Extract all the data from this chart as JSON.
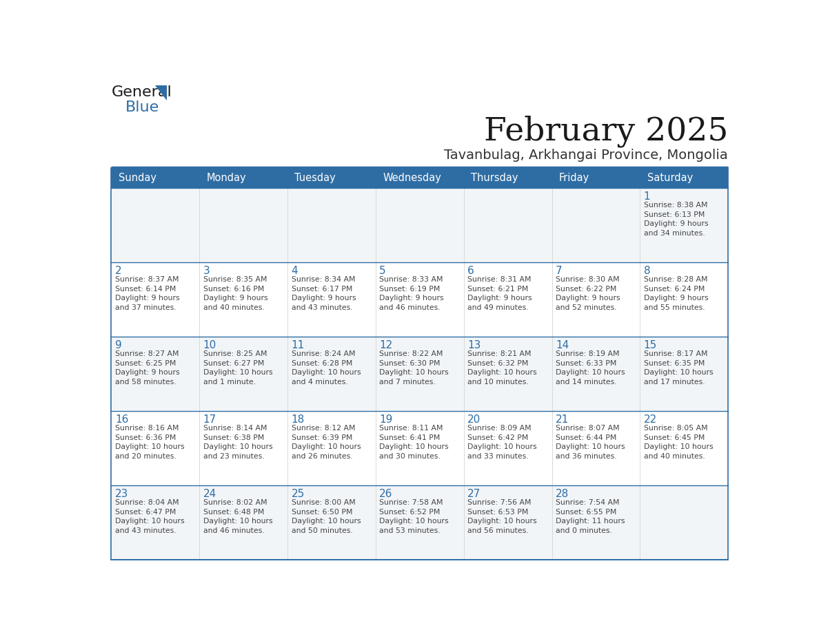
{
  "title": "February 2025",
  "subtitle": "Tavanbulag, Arkhangai Province, Mongolia",
  "header_bg": "#2E6DA4",
  "header_text_color": "#FFFFFF",
  "cell_bg_light": "#F0F4F8",
  "cell_bg_white": "#FFFFFF",
  "day_number_color": "#2E6DA4",
  "cell_text_color": "#444444",
  "border_color": "#2E6DA4",
  "row_divider_color": "#2E6DA4",
  "days_of_week": [
    "Sunday",
    "Monday",
    "Tuesday",
    "Wednesday",
    "Thursday",
    "Friday",
    "Saturday"
  ],
  "weeks": [
    [
      {
        "day": null,
        "info": null
      },
      {
        "day": null,
        "info": null
      },
      {
        "day": null,
        "info": null
      },
      {
        "day": null,
        "info": null
      },
      {
        "day": null,
        "info": null
      },
      {
        "day": null,
        "info": null
      },
      {
        "day": 1,
        "info": "Sunrise: 8:38 AM\nSunset: 6:13 PM\nDaylight: 9 hours\nand 34 minutes."
      }
    ],
    [
      {
        "day": 2,
        "info": "Sunrise: 8:37 AM\nSunset: 6:14 PM\nDaylight: 9 hours\nand 37 minutes."
      },
      {
        "day": 3,
        "info": "Sunrise: 8:35 AM\nSunset: 6:16 PM\nDaylight: 9 hours\nand 40 minutes."
      },
      {
        "day": 4,
        "info": "Sunrise: 8:34 AM\nSunset: 6:17 PM\nDaylight: 9 hours\nand 43 minutes."
      },
      {
        "day": 5,
        "info": "Sunrise: 8:33 AM\nSunset: 6:19 PM\nDaylight: 9 hours\nand 46 minutes."
      },
      {
        "day": 6,
        "info": "Sunrise: 8:31 AM\nSunset: 6:21 PM\nDaylight: 9 hours\nand 49 minutes."
      },
      {
        "day": 7,
        "info": "Sunrise: 8:30 AM\nSunset: 6:22 PM\nDaylight: 9 hours\nand 52 minutes."
      },
      {
        "day": 8,
        "info": "Sunrise: 8:28 AM\nSunset: 6:24 PM\nDaylight: 9 hours\nand 55 minutes."
      }
    ],
    [
      {
        "day": 9,
        "info": "Sunrise: 8:27 AM\nSunset: 6:25 PM\nDaylight: 9 hours\nand 58 minutes."
      },
      {
        "day": 10,
        "info": "Sunrise: 8:25 AM\nSunset: 6:27 PM\nDaylight: 10 hours\nand 1 minute."
      },
      {
        "day": 11,
        "info": "Sunrise: 8:24 AM\nSunset: 6:28 PM\nDaylight: 10 hours\nand 4 minutes."
      },
      {
        "day": 12,
        "info": "Sunrise: 8:22 AM\nSunset: 6:30 PM\nDaylight: 10 hours\nand 7 minutes."
      },
      {
        "day": 13,
        "info": "Sunrise: 8:21 AM\nSunset: 6:32 PM\nDaylight: 10 hours\nand 10 minutes."
      },
      {
        "day": 14,
        "info": "Sunrise: 8:19 AM\nSunset: 6:33 PM\nDaylight: 10 hours\nand 14 minutes."
      },
      {
        "day": 15,
        "info": "Sunrise: 8:17 AM\nSunset: 6:35 PM\nDaylight: 10 hours\nand 17 minutes."
      }
    ],
    [
      {
        "day": 16,
        "info": "Sunrise: 8:16 AM\nSunset: 6:36 PM\nDaylight: 10 hours\nand 20 minutes."
      },
      {
        "day": 17,
        "info": "Sunrise: 8:14 AM\nSunset: 6:38 PM\nDaylight: 10 hours\nand 23 minutes."
      },
      {
        "day": 18,
        "info": "Sunrise: 8:12 AM\nSunset: 6:39 PM\nDaylight: 10 hours\nand 26 minutes."
      },
      {
        "day": 19,
        "info": "Sunrise: 8:11 AM\nSunset: 6:41 PM\nDaylight: 10 hours\nand 30 minutes."
      },
      {
        "day": 20,
        "info": "Sunrise: 8:09 AM\nSunset: 6:42 PM\nDaylight: 10 hours\nand 33 minutes."
      },
      {
        "day": 21,
        "info": "Sunrise: 8:07 AM\nSunset: 6:44 PM\nDaylight: 10 hours\nand 36 minutes."
      },
      {
        "day": 22,
        "info": "Sunrise: 8:05 AM\nSunset: 6:45 PM\nDaylight: 10 hours\nand 40 minutes."
      }
    ],
    [
      {
        "day": 23,
        "info": "Sunrise: 8:04 AM\nSunset: 6:47 PM\nDaylight: 10 hours\nand 43 minutes."
      },
      {
        "day": 24,
        "info": "Sunrise: 8:02 AM\nSunset: 6:48 PM\nDaylight: 10 hours\nand 46 minutes."
      },
      {
        "day": 25,
        "info": "Sunrise: 8:00 AM\nSunset: 6:50 PM\nDaylight: 10 hours\nand 50 minutes."
      },
      {
        "day": 26,
        "info": "Sunrise: 7:58 AM\nSunset: 6:52 PM\nDaylight: 10 hours\nand 53 minutes."
      },
      {
        "day": 27,
        "info": "Sunrise: 7:56 AM\nSunset: 6:53 PM\nDaylight: 10 hours\nand 56 minutes."
      },
      {
        "day": 28,
        "info": "Sunrise: 7:54 AM\nSunset: 6:55 PM\nDaylight: 11 hours\nand 0 minutes."
      },
      {
        "day": null,
        "info": null
      }
    ]
  ]
}
